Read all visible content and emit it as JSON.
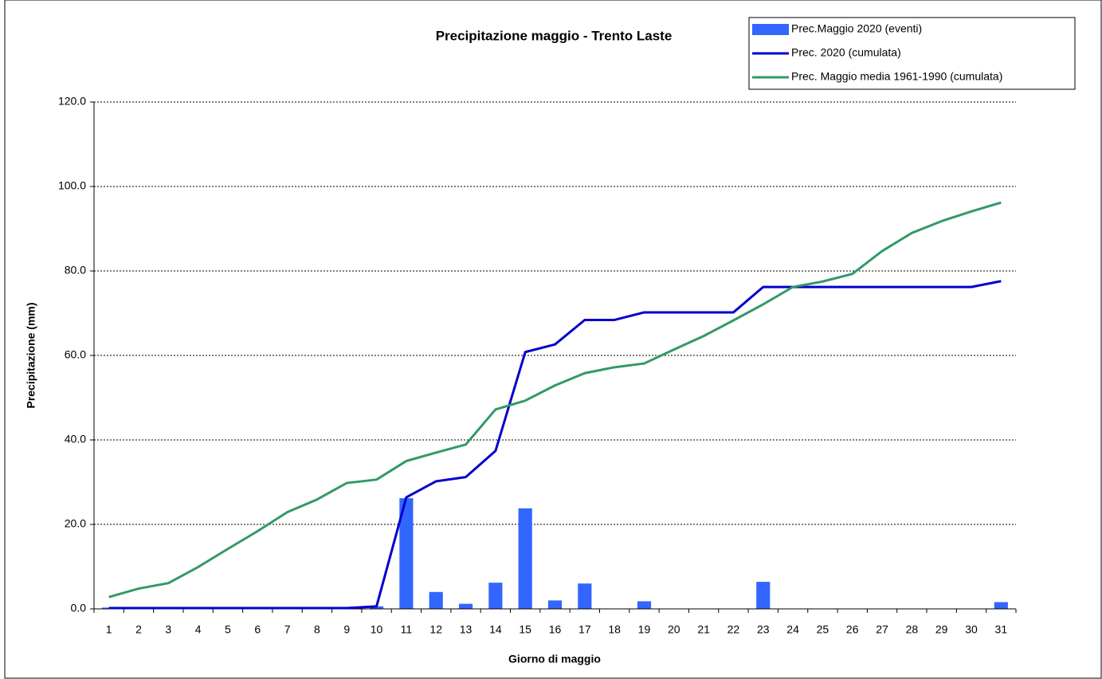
{
  "chart_data": {
    "type": "bar_line",
    "title": "Precipitazione maggio - Trento Laste",
    "x_label": "Giorno di maggio",
    "y_label": "Precipitazione (mm)",
    "categories": [
      "1",
      "2",
      "3",
      "4",
      "5",
      "6",
      "7",
      "8",
      "9",
      "10",
      "11",
      "12",
      "13",
      "14",
      "15",
      "16",
      "17",
      "18",
      "19",
      "20",
      "21",
      "22",
      "23",
      "24",
      "25",
      "26",
      "27",
      "28",
      "29",
      "30",
      "31"
    ],
    "series": [
      {
        "name": "Prec.Maggio 2020 (eventi)",
        "kind": "bar",
        "color": "#3366ff",
        "values": [
          0.3,
          0,
          0,
          0,
          0,
          0,
          0,
          0,
          0,
          0.6,
          26.2,
          4.0,
          1.2,
          6.2,
          23.8,
          2.0,
          6.0,
          0,
          1.8,
          0,
          0,
          0,
          6.4,
          0,
          0,
          0,
          0,
          0,
          0,
          0,
          1.6
        ]
      },
      {
        "name": "Prec. 2020 (cumulata)",
        "kind": "line",
        "color": "#0000cc",
        "values": [
          0.2,
          0.2,
          0.2,
          0.2,
          0.2,
          0.2,
          0.2,
          0.2,
          0.2,
          0.6,
          26.4,
          30.2,
          31.2,
          37.4,
          60.8,
          62.6,
          68.4,
          68.4,
          70.2,
          70.2,
          70.2,
          70.2,
          76.2,
          76.2,
          76.2,
          76.2,
          76.2,
          76.2,
          76.2,
          76.2,
          77.6
        ]
      },
      {
        "name": "Prec. Maggio media 1961-1990 (cumulata)",
        "kind": "line",
        "color": "#339966",
        "values": [
          2.8,
          4.8,
          6.1,
          9.9,
          14.2,
          18.4,
          22.9,
          25.9,
          29.8,
          30.6,
          35.0,
          37.0,
          38.9,
          47.2,
          49.3,
          52.9,
          55.8,
          57.2,
          58.1,
          61.4,
          64.6,
          68.3,
          72.1,
          76.2,
          77.5,
          79.3,
          84.7,
          89.0,
          91.8,
          94.1,
          96.2
        ]
      }
    ],
    "ylim": [
      0,
      120
    ],
    "yticks": [
      {
        "value": 0,
        "label": "0.0"
      },
      {
        "value": 20,
        "label": "20.0"
      },
      {
        "value": 40,
        "label": "40.0"
      },
      {
        "value": 60,
        "label": "60.0"
      },
      {
        "value": 80,
        "label": "80.0"
      },
      {
        "value": 100,
        "label": "100.0"
      },
      {
        "value": 120,
        "label": "120.0"
      }
    ],
    "grid": true,
    "legend": "top-right"
  }
}
